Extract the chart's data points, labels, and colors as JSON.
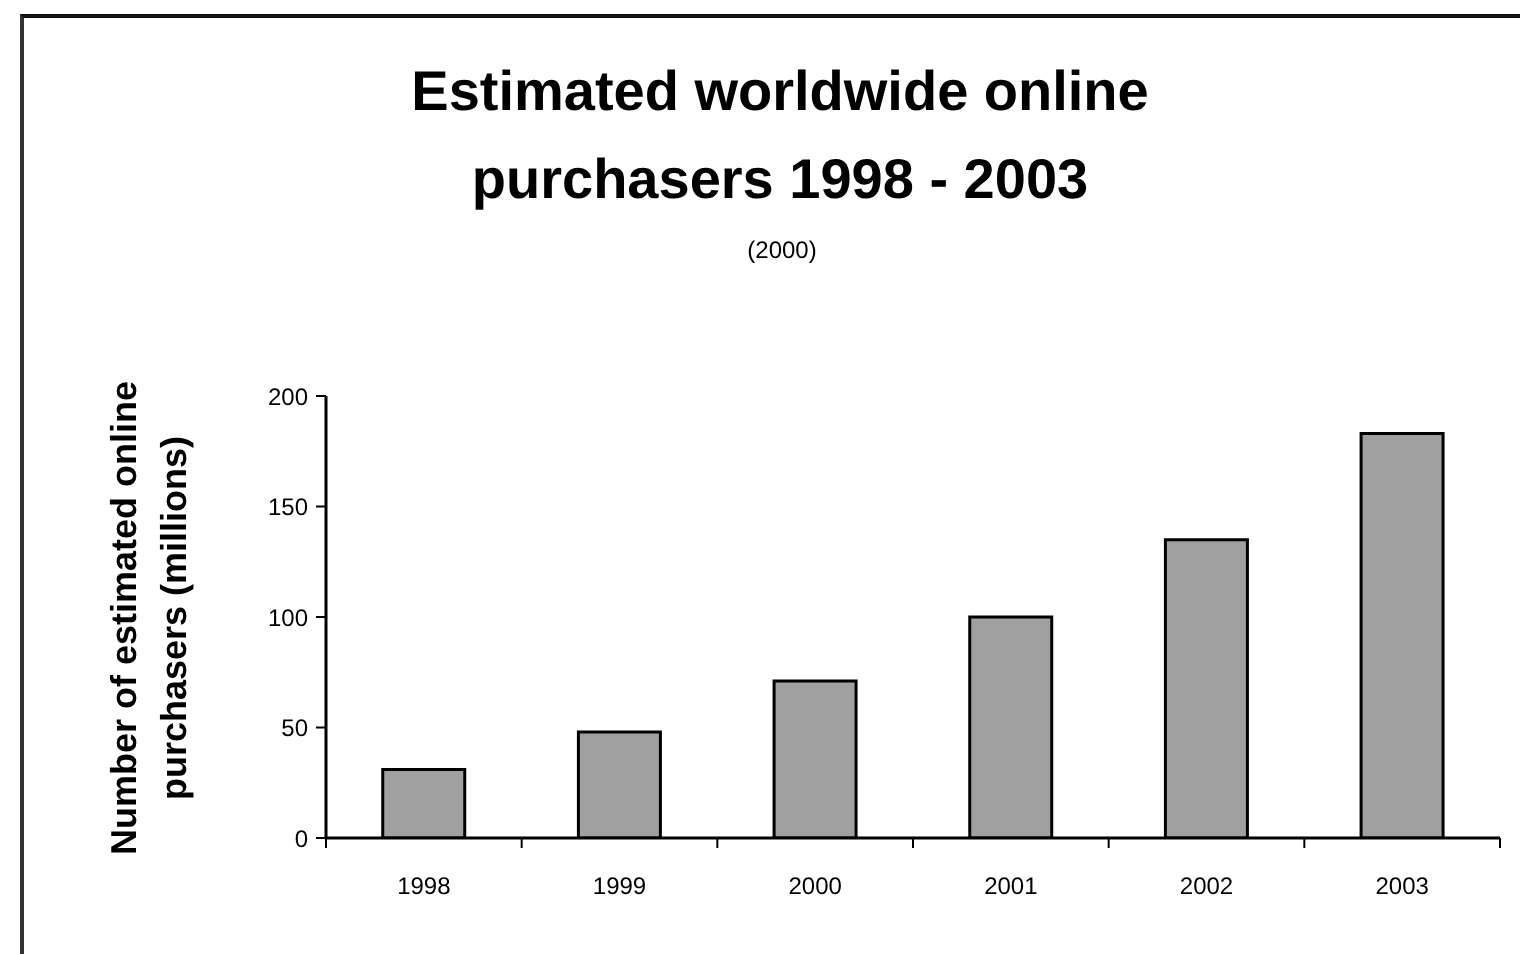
{
  "chart_data": {
    "type": "bar",
    "title": "Estimated worldwide online purchasers 1998 - 2003",
    "subtitle": "(2000)",
    "ylabel": "Number of estimated online purchasers (millions)",
    "categories": [
      "1998",
      "1999",
      "2000",
      "2001",
      "2002",
      "2003"
    ],
    "values": [
      31,
      48,
      71,
      100,
      135,
      183
    ],
    "color": "#a0a0a0",
    "ylim": [
      0,
      200
    ],
    "yticks": [
      0,
      50,
      100,
      150,
      200
    ]
  }
}
